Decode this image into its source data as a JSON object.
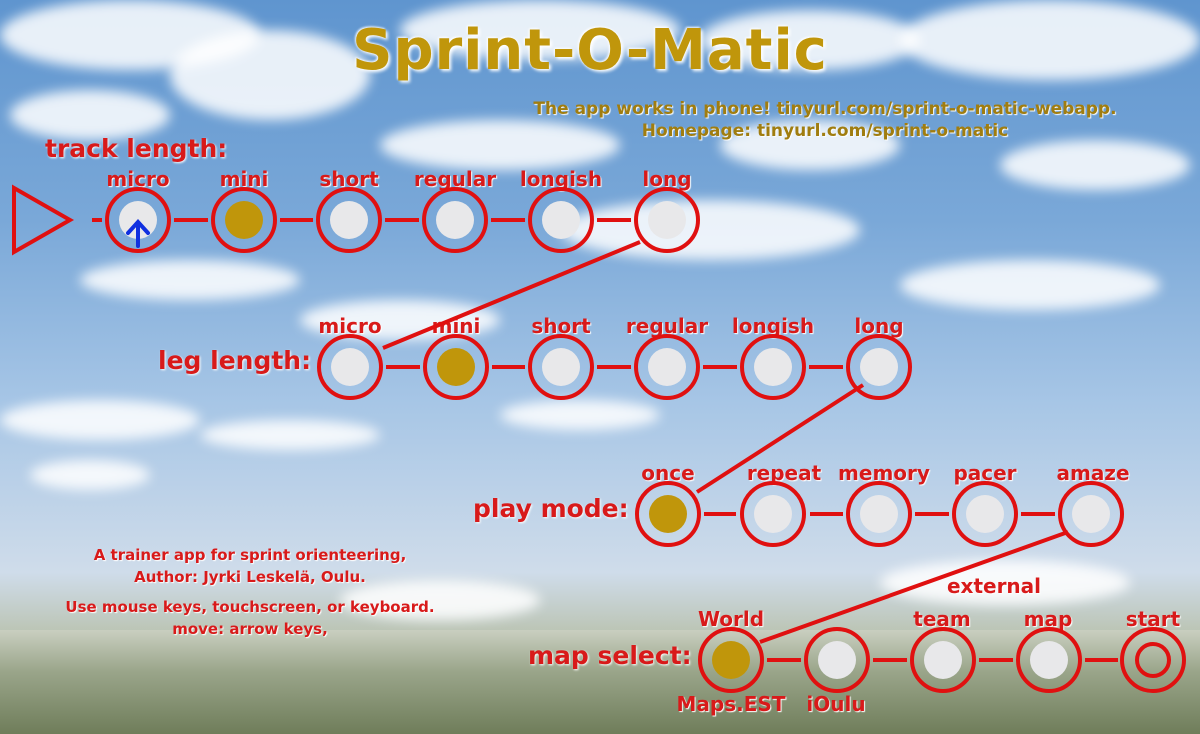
{
  "title": "Sprint-O-Matic",
  "info": {
    "line1": "The app works in phone! tinyurl.com/sprint-o-matic-webapp.",
    "line2": "Homepage: tinyurl.com/sprint-o-matic"
  },
  "track_length": {
    "label": "track length:",
    "options": [
      "micro",
      "mini",
      "short",
      "regular",
      "longish",
      "long"
    ],
    "selected": "mini"
  },
  "leg_length": {
    "label": "leg length:",
    "options": [
      "micro",
      "mini",
      "short",
      "regular",
      "longish",
      "long"
    ],
    "selected": "mini"
  },
  "play_mode": {
    "label": "play mode:",
    "options": [
      "once",
      "repeat",
      "memory",
      "pacer",
      "amaze"
    ],
    "selected": "once"
  },
  "map_select": {
    "label": "map select:",
    "options": [
      {
        "top": "World",
        "bottom": "Maps.EST"
      },
      {
        "top": "",
        "bottom": "iOulu"
      },
      {
        "top": "team",
        "bottom": ""
      },
      {
        "top": "map",
        "bottom": ""
      }
    ],
    "external_label": "external",
    "selected": "World",
    "start_label": "start"
  },
  "about": {
    "line1": "A trainer app for sprint orienteering,",
    "line2": "Author: Jyrki Leskelä, Oulu.",
    "line3": "Use mouse keys, touchscreen, or keyboard.",
    "line4": "move: arrow keys,"
  },
  "colors": {
    "accent_red": "#e01010",
    "selected_gold": "#c0960b",
    "node_fill": "#e8e8ea",
    "cursor_blue": "#1030e0"
  },
  "cursor": {
    "row": "track_length",
    "option": "micro",
    "icon": "arrow-up-icon"
  }
}
